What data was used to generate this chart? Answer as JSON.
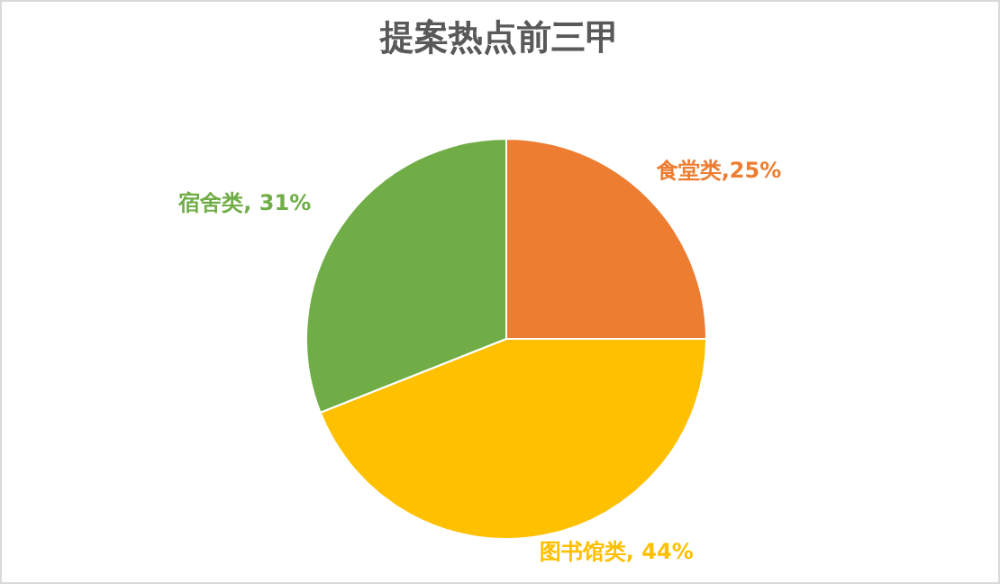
{
  "chart_data": {
    "type": "pie",
    "title": "提案热点前三甲",
    "categories": [
      "食堂类",
      "图书馆类",
      "宿舍类"
    ],
    "values": [
      25,
      44,
      31
    ],
    "colors": [
      "#ed7d31",
      "#ffc000",
      "#70ad47"
    ],
    "value_labels": [
      ",25%",
      ", 44%",
      ", 31%"
    ],
    "legend": false
  }
}
